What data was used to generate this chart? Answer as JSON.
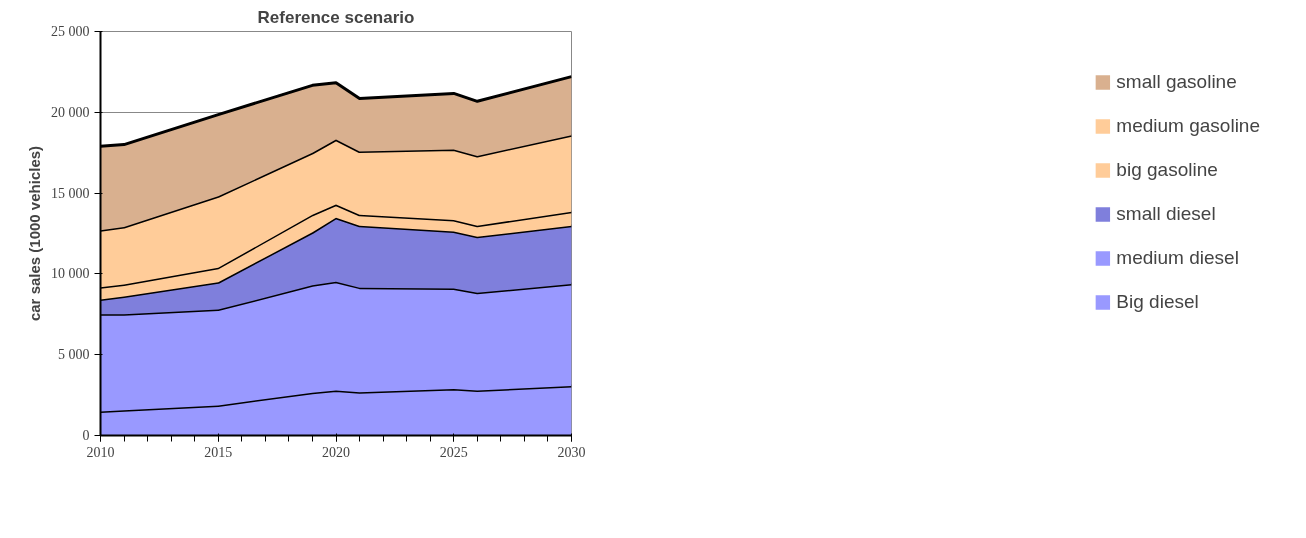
{
  "chart_data": {
    "type": "area",
    "stacked": true,
    "title": "Reference scenario",
    "ylabel": "car sales (1000 vehicles)",
    "x": [
      2010,
      2011,
      2015,
      2019,
      2020,
      2021,
      2025,
      2026,
      2030
    ],
    "xlim": [
      2010,
      2030
    ],
    "xticks": [
      2010,
      2015,
      2020,
      2025,
      2030
    ],
    "ylim": [
      0,
      25000
    ],
    "yticks": [
      {
        "value": 0,
        "label": "0"
      },
      {
        "value": 5000,
        "label": "5 000"
      },
      {
        "value": 10000,
        "label": "10 000"
      },
      {
        "value": 15000,
        "label": "15 000"
      },
      {
        "value": 20000,
        "label": "20 000"
      },
      {
        "value": 25000,
        "label": "25 000"
      }
    ],
    "grid": "y",
    "legend": "right",
    "series": [
      {
        "name": "Big diesel",
        "color": "#9999ff",
        "values": [
          1480,
          1560,
          1860,
          2650,
          2780,
          2680,
          2870,
          2790,
          3060
        ]
      },
      {
        "name": "medium diesel",
        "color": "#9999ff",
        "values": [
          6030,
          5950,
          5930,
          6640,
          6730,
          6470,
          6230,
          6040,
          6310
        ]
      },
      {
        "name": "small diesel",
        "color": "#7f7fdc",
        "values": [
          910,
          1090,
          1690,
          3280,
          3960,
          3830,
          3520,
          3470,
          3610
        ]
      },
      {
        "name": "big gasoline",
        "color": "#ffcc99",
        "values": [
          760,
          740,
          900,
          1090,
          820,
          680,
          710,
          680,
          870
        ]
      },
      {
        "name": "medium gasoline",
        "color": "#ffcc99",
        "values": [
          3520,
          3560,
          4420,
          3830,
          4020,
          3910,
          4370,
          4320,
          4730
        ]
      },
      {
        "name": "small gasoline",
        "color": "#d9b08f",
        "values": [
          5200,
          5100,
          5060,
          4180,
          3520,
          3280,
          3470,
          3380,
          3630
        ]
      }
    ]
  }
}
